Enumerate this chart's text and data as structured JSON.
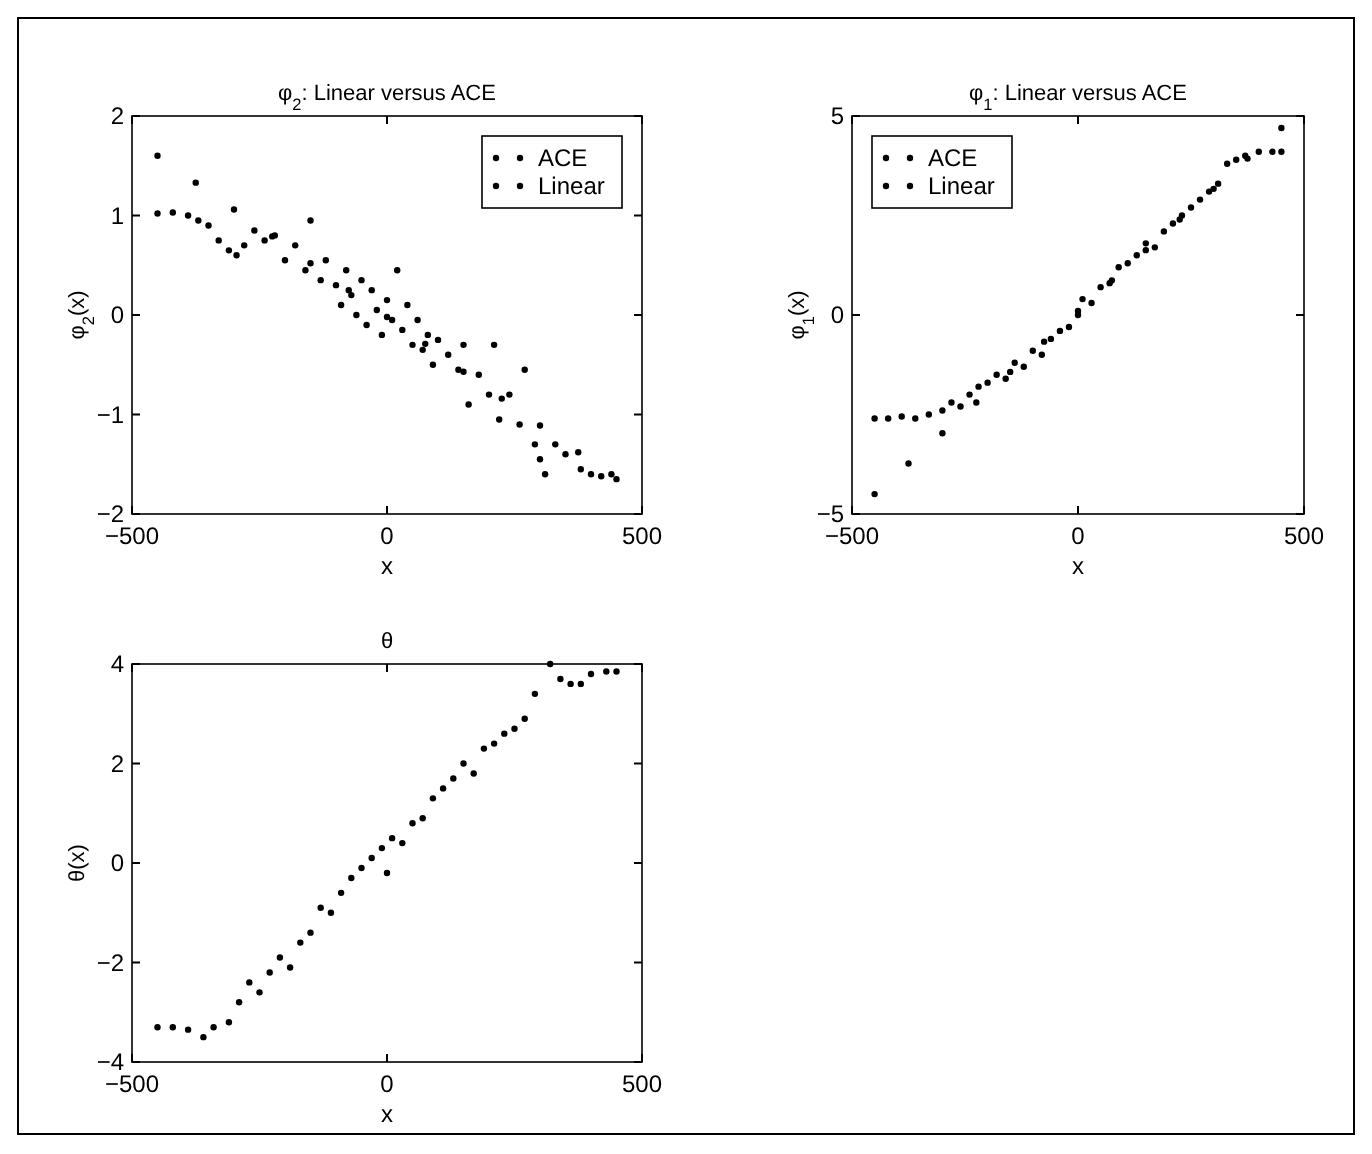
{
  "chart_data": [
    {
      "type": "scatter",
      "title": "φ$_{2}$: Linear versus ACE",
      "xlabel": "x",
      "ylabel": "φ$_{2}$(x)",
      "xlim": [
        -500,
        500
      ],
      "xticks": [
        -500,
        0,
        500
      ],
      "ylim": [
        -2,
        2
      ],
      "yticks": [
        -2,
        -1,
        0,
        1,
        2
      ],
      "grid": false,
      "legend": "top right",
      "marker": "circle",
      "series": [
        {
          "name": "ACE",
          "color": "#000000",
          "x": [
            -450,
            -420,
            -390,
            -370,
            -350,
            -330,
            -310,
            -295,
            -280,
            -260,
            -240,
            -220,
            -200,
            -180,
            -160,
            -150,
            -130,
            -120,
            -100,
            -90,
            -80,
            -70,
            -60,
            -50,
            -40,
            -30,
            -20,
            -10,
            0,
            10,
            20,
            30,
            40,
            50,
            60,
            70,
            80,
            90,
            100,
            120,
            140,
            150,
            160,
            180,
            200,
            210,
            220,
            240,
            260,
            270,
            290,
            300,
            310,
            330,
            350,
            380,
            400,
            420,
            440
          ],
          "values": [
            1.02,
            1.03,
            1.0,
            0.95,
            0.9,
            0.75,
            0.65,
            0.6,
            0.7,
            0.85,
            0.75,
            0.8,
            0.55,
            0.7,
            0.45,
            0.95,
            0.35,
            0.55,
            0.3,
            0.1,
            0.45,
            0.2,
            0.0,
            0.35,
            -0.1,
            0.25,
            0.05,
            -0.2,
            0.15,
            -0.05,
            0.45,
            -0.15,
            0.1,
            -0.3,
            -0.05,
            -0.35,
            -0.2,
            -0.5,
            -0.25,
            -0.4,
            -0.55,
            -0.3,
            -0.9,
            -0.6,
            -0.8,
            -0.3,
            -1.05,
            -0.8,
            -1.1,
            -0.55,
            -1.3,
            -1.45,
            -1.6,
            -1.3,
            -1.4,
            -1.55,
            -1.6,
            -1.62,
            -1.6
          ]
        },
        {
          "name": "Linear",
          "color": "#000000",
          "x": [
            -450,
            -375,
            -300,
            -225,
            -150,
            -75,
            0,
            75,
            150,
            225,
            300,
            375,
            450
          ],
          "values": [
            1.6,
            1.33,
            1.06,
            0.79,
            0.52,
            0.25,
            -0.02,
            -0.29,
            -0.57,
            -0.84,
            -1.11,
            -1.38,
            -1.65
          ]
        }
      ]
    },
    {
      "type": "scatter",
      "title": "φ$_{1}$: Linear versus ACE",
      "xlabel": "x",
      "ylabel": "φ$_{1}$(x)",
      "xlim": [
        -500,
        500
      ],
      "xticks": [
        -500,
        0,
        500
      ],
      "ylim": [
        -5,
        5
      ],
      "yticks": [
        -5,
        0,
        5
      ],
      "grid": false,
      "legend": "top left",
      "marker": "circle",
      "series": [
        {
          "name": "ACE",
          "color": "#000000",
          "x": [
            -450,
            -420,
            -390,
            -360,
            -330,
            -300,
            -280,
            -260,
            -240,
            -220,
            -200,
            -180,
            -160,
            -140,
            -120,
            -100,
            -80,
            -60,
            -40,
            -20,
            0,
            10,
            30,
            50,
            70,
            90,
            110,
            130,
            150,
            170,
            190,
            210,
            230,
            250,
            270,
            290,
            310,
            330,
            350,
            370,
            400,
            430,
            450
          ],
          "values": [
            -2.6,
            -2.6,
            -2.55,
            -2.6,
            -2.5,
            -2.4,
            -2.2,
            -2.3,
            -2.0,
            -1.8,
            -1.7,
            -1.5,
            -1.6,
            -1.2,
            -1.3,
            -0.9,
            -1.0,
            -0.6,
            -0.4,
            -0.3,
            0.0,
            0.4,
            0.3,
            0.7,
            0.8,
            1.2,
            1.3,
            1.5,
            1.8,
            1.7,
            2.1,
            2.3,
            2.5,
            2.7,
            2.9,
            3.1,
            3.3,
            3.8,
            3.9,
            4.0,
            4.1,
            4.1,
            4.1
          ]
        },
        {
          "name": "Linear",
          "color": "#000000",
          "x": [
            -450,
            -375,
            -300,
            -225,
            -150,
            -75,
            0,
            75,
            150,
            225,
            300,
            375,
            450
          ],
          "values": [
            -4.5,
            -3.73,
            -2.97,
            -2.2,
            -1.43,
            -0.67,
            0.1,
            0.87,
            1.63,
            2.4,
            3.17,
            3.93,
            4.7
          ]
        }
      ]
    },
    {
      "type": "scatter",
      "title": "θ",
      "xlabel": "x",
      "ylabel": "θ(x)",
      "xlim": [
        -500,
        500
      ],
      "xticks": [
        -500,
        0,
        500
      ],
      "ylim": [
        -4,
        4
      ],
      "yticks": [
        -4,
        -2,
        0,
        2,
        4
      ],
      "grid": false,
      "legend": false,
      "marker": "circle",
      "series": [
        {
          "color": "#000000",
          "x": [
            -450,
            -420,
            -390,
            -360,
            -340,
            -310,
            -290,
            -270,
            -250,
            -230,
            -210,
            -190,
            -170,
            -150,
            -130,
            -110,
            -90,
            -70,
            -50,
            -30,
            -10,
            0,
            10,
            30,
            50,
            70,
            90,
            110,
            130,
            150,
            170,
            190,
            210,
            230,
            250,
            270,
            290,
            320,
            340,
            360,
            380,
            400,
            430,
            450
          ],
          "values": [
            -3.3,
            -3.3,
            -3.35,
            -3.5,
            -3.3,
            -3.2,
            -2.8,
            -2.4,
            -2.6,
            -2.2,
            -1.9,
            -2.1,
            -1.6,
            -1.4,
            -0.9,
            -1.0,
            -0.6,
            -0.3,
            -0.1,
            0.1,
            0.3,
            -0.2,
            0.5,
            0.4,
            0.8,
            0.9,
            1.3,
            1.5,
            1.7,
            2.0,
            1.8,
            2.3,
            2.4,
            2.6,
            2.7,
            2.9,
            3.4,
            4.0,
            3.7,
            3.6,
            3.6,
            3.8,
            3.85,
            3.85
          ]
        }
      ]
    }
  ]
}
